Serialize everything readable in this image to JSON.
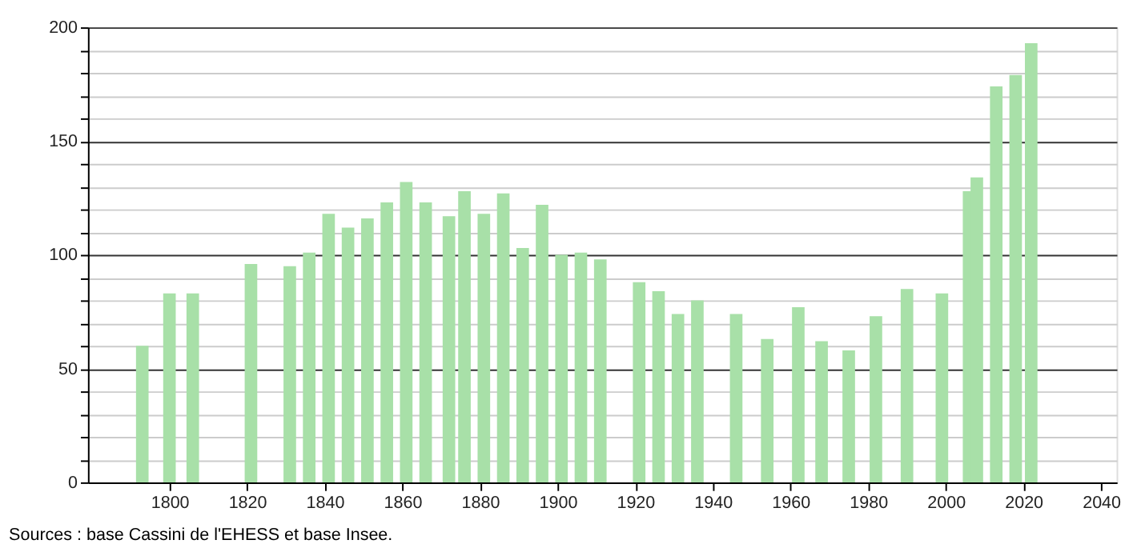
{
  "chart_data": {
    "type": "bar",
    "annotations": [
      "Sources : base Cassini de l'EHESS et base Insee."
    ],
    "x": [
      1793,
      1800,
      1806,
      1821,
      1831,
      1836,
      1841,
      1846,
      1851,
      1856,
      1861,
      1866,
      1872,
      1876,
      1881,
      1886,
      1891,
      1896,
      1901,
      1906,
      1911,
      1921,
      1926,
      1931,
      1936,
      1946,
      1954,
      1962,
      1968,
      1975,
      1982,
      1990,
      1999,
      2006,
      2008,
      2013,
      2018,
      2022
    ],
    "values": [
      60,
      83,
      83,
      96,
      95,
      101,
      118,
      112,
      116,
      123,
      132,
      123,
      117,
      128,
      118,
      127,
      103,
      122,
      100,
      101,
      98,
      88,
      84,
      74,
      80,
      74,
      63,
      77,
      62,
      58,
      73,
      85,
      83,
      128,
      134,
      174,
      179,
      193
    ],
    "color": "#a8e0a8",
    "xlim": [
      1779,
      2044
    ],
    "xticks": [
      1800,
      1820,
      1840,
      1860,
      1880,
      1900,
      1920,
      1940,
      1960,
      1980,
      2000,
      2020,
      2040
    ],
    "ylim": [
      0,
      200
    ],
    "yticks": [
      0,
      {
        "value": 10,
        "label": null
      },
      {
        "value": 20,
        "label": null
      },
      {
        "value": 30,
        "label": null
      },
      {
        "value": 40,
        "label": null
      },
      50,
      {
        "value": 60,
        "label": null
      },
      {
        "value": 70,
        "label": null
      },
      {
        "value": 80,
        "label": null
      },
      {
        "value": 90,
        "label": null
      },
      100,
      {
        "value": 110,
        "label": null
      },
      {
        "value": 120,
        "label": null
      },
      {
        "value": 130,
        "label": null
      },
      {
        "value": 140,
        "label": null
      },
      150,
      {
        "value": 160,
        "label": null
      },
      {
        "value": 170,
        "label": null
      },
      {
        "value": 180,
        "label": null
      },
      {
        "value": 190,
        "label": null
      },
      200
    ],
    "grid": "y"
  }
}
